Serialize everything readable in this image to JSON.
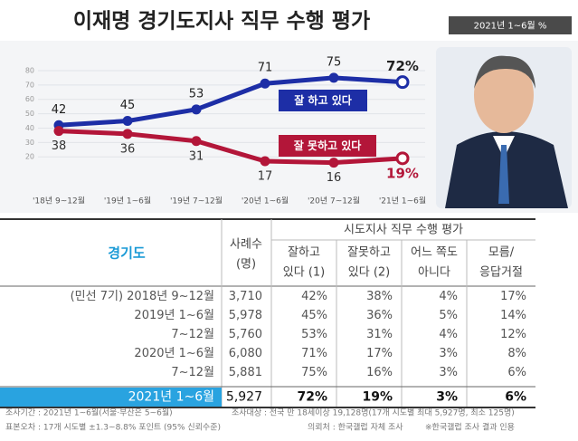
{
  "chart_data": {
    "type": "line",
    "title": "이재명 경기도지사 직무 수행 평가",
    "subtitle": "2021년 1~6월  %",
    "categories": [
      "'18년 9~12월",
      "'19년 1~6월",
      "'19년 7~12월",
      "'20년 1~6월",
      "'20년 7~12월",
      "'21년 1~6월"
    ],
    "series": [
      {
        "name": "잘 하고 있다",
        "color": "#1d2ea6",
        "values": [
          42,
          45,
          53,
          71,
          75,
          72
        ],
        "value_labels": [
          "42",
          "45",
          "53",
          "71",
          "75",
          "72%"
        ]
      },
      {
        "name": "잘 못하고 있다",
        "color": "#b31639",
        "values": [
          38,
          36,
          31,
          17,
          16,
          19
        ],
        "value_labels": [
          "38",
          "36",
          "31",
          "17",
          "16",
          "19%"
        ]
      }
    ],
    "ylim": [
      0,
      85
    ],
    "yticks": [
      20,
      30,
      40,
      50,
      60,
      70,
      80
    ],
    "grid": true
  },
  "table": {
    "header": {
      "region": "경기도",
      "sample": [
        "사례수",
        "(명)"
      ],
      "group": "시도지사 직무 수행 평가",
      "columns": [
        [
          "잘하고",
          "있다 (1)"
        ],
        [
          "잘못하고",
          "있다 (2)"
        ],
        [
          "어느 쪽도",
          "아니다"
        ],
        [
          "모름/",
          "응답거절"
        ]
      ]
    },
    "rows": [
      [
        "(민선 7기) 2018년 9~12월",
        "3,710",
        "42%",
        "38%",
        "4%",
        "17%"
      ],
      [
        "2019년 1~6월",
        "5,978",
        "45%",
        "36%",
        "5%",
        "14%"
      ],
      [
        "7~12월",
        "5,760",
        "53%",
        "31%",
        "4%",
        "12%"
      ],
      [
        "2020년 1~6월",
        "6,080",
        "71%",
        "17%",
        "3%",
        "8%"
      ],
      [
        "7~12월",
        "5,881",
        "75%",
        "16%",
        "3%",
        "6%"
      ],
      [
        "2021년 1~6월",
        "5,927",
        "72%",
        "19%",
        "3%",
        "6%"
      ]
    ]
  },
  "notes": [
    "조사기간 : 2021년 1~6월(서울·부산은 5~6월)",
    "조사대상 : 전국 만 18세이상 19,128명(17개 시도별 최대 5,927명, 최소 125명)",
    "표본오차 : 17개 시도별 ±1.3~8.8% 포인트 (95% 신뢰수준)",
    "의뢰처 : 한국갤럽 자체 조사",
    "※한국갤럽 조사 결과 인용"
  ]
}
